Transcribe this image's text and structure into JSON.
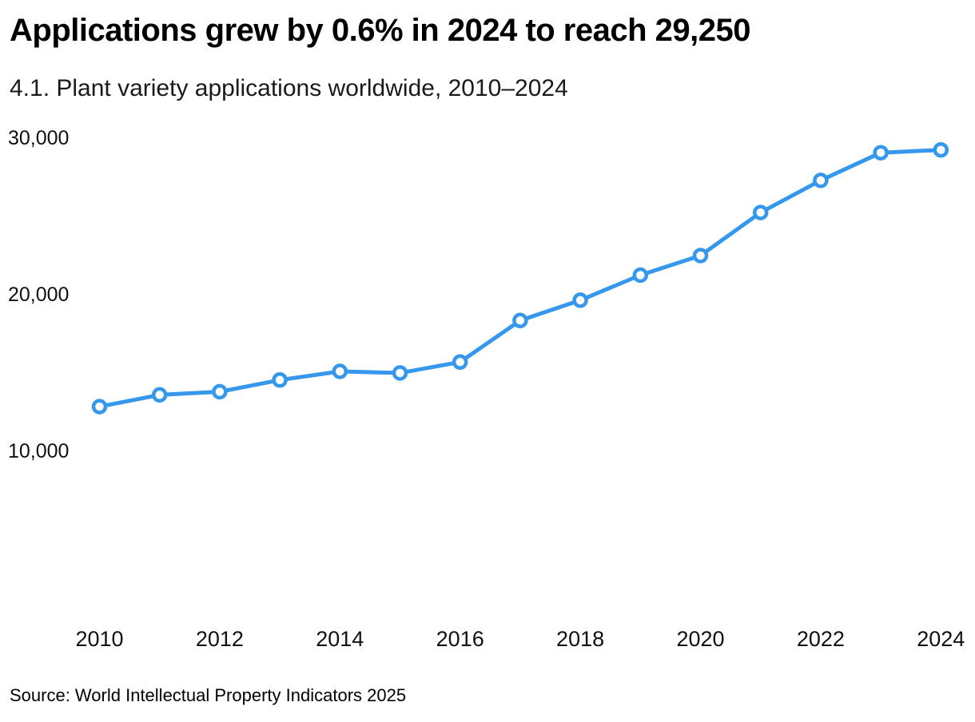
{
  "header": {
    "title": "Applications grew by 0.6% in 2024 to reach 29,250",
    "subtitle": "4.1. Plant variety applications worldwide, 2010–2024"
  },
  "source_note": "Source: World Intellectual Property Indicators 2025",
  "colors": {
    "line": "#3598EC",
    "marker_fill": "#FFFFFF",
    "title_text": "#000000",
    "tick_text": "#111111"
  },
  "chart_data": {
    "type": "line",
    "title": "Applications grew by 0.6% in 2024 to reach 29,250",
    "subtitle": "4.1. Plant variety applications worldwide, 2010–2024",
    "x": [
      2010,
      2011,
      2012,
      2013,
      2014,
      2015,
      2016,
      2017,
      2018,
      2019,
      2020,
      2021,
      2022,
      2023,
      2024
    ],
    "series": [
      {
        "name": "Plant variety applications worldwide",
        "values": [
          12850,
          13600,
          13800,
          14550,
          15100,
          15000,
          15700,
          18350,
          19650,
          21250,
          22500,
          25250,
          27300,
          29070,
          29250
        ]
      }
    ],
    "xticks": [
      {
        "value": 2010,
        "label": "2010"
      },
      {
        "value": 2012,
        "label": "2012"
      },
      {
        "value": 2014,
        "label": "2014"
      },
      {
        "value": 2016,
        "label": "2016"
      },
      {
        "value": 2018,
        "label": "2018"
      },
      {
        "value": 2020,
        "label": "2020"
      },
      {
        "value": 2022,
        "label": "2022"
      },
      {
        "value": 2024,
        "label": "2024"
      }
    ],
    "yticks": [
      {
        "value": 10000,
        "label": "10,000"
      },
      {
        "value": 20000,
        "label": "20,000"
      },
      {
        "value": 30000,
        "label": "30,000"
      }
    ],
    "ylim": [
      8000,
      30800
    ],
    "xlabel": "",
    "ylabel": "",
    "grid": false,
    "legend": "none",
    "marker": "open-circle",
    "source": "Source: World Intellectual Property Indicators 2025"
  }
}
